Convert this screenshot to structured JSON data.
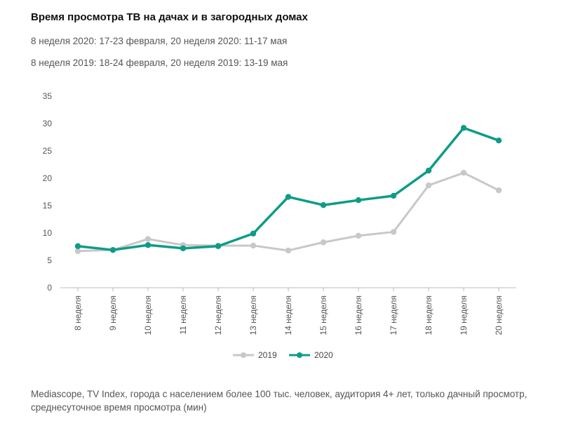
{
  "header": {
    "title": "Время просмотра ТВ на дачах и в загородных домах",
    "subtitle_1": "8 неделя 2020: 17-23 февраля, 20 неделя 2020: 11-17 мая",
    "subtitle_2": "8 неделя 2019: 18-24 февраля, 20 неделя 2019: 13-19 мая"
  },
  "footnote": "Mediascope, TV Index, города с населением более 100 тыс. человек, аудитория 4+ лет, только дачный просмотр, среднесуточное время просмотра (мин)",
  "colors": {
    "series_2019": "#c8c8c8",
    "series_2020": "#0e9c86",
    "axis": "#bbbbbb"
  },
  "chart_data": {
    "type": "line",
    "categories": [
      "8 неделя",
      "9 неделя",
      "10 неделя",
      "11 неделя",
      "12 неделя",
      "13 неделя",
      "14 неделя",
      "15 неделя",
      "16 неделя",
      "17 неделя",
      "18 неделя",
      "19 неделя",
      "20 неделя"
    ],
    "series": [
      {
        "name": "2019",
        "values": [
          6.7,
          6.9,
          8.9,
          7.8,
          7.7,
          7.7,
          6.8,
          8.3,
          9.5,
          10.2,
          18.7,
          21.0,
          17.8
        ]
      },
      {
        "name": "2020",
        "values": [
          7.6,
          6.9,
          7.8,
          7.2,
          7.6,
          9.9,
          16.6,
          15.1,
          16.0,
          16.8,
          21.4,
          29.2,
          26.9
        ]
      }
    ],
    "ylim": [
      0,
      35
    ],
    "yticks": [
      "0",
      "5",
      "10",
      "15",
      "20",
      "25",
      "30",
      "35"
    ],
    "grid": false,
    "legend_position": "bottom-center"
  }
}
